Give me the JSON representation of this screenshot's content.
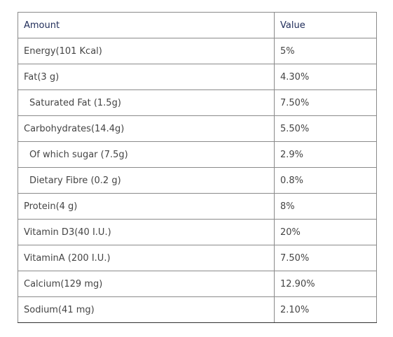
{
  "table": {
    "headers": {
      "amount": "Amount",
      "value": "Value"
    },
    "rows": [
      {
        "amount": "Energy(101 Kcal)",
        "value": "5%",
        "indent": false
      },
      {
        "amount": "Fat(3 g)",
        "value": "4.30%",
        "indent": false
      },
      {
        "amount": "Saturated Fat (1.5g)",
        "value": "7.50%",
        "indent": true
      },
      {
        "amount": "Carbohydrates(14.4g)",
        "value": "5.50%",
        "indent": false
      },
      {
        "amount": "Of which sugar (7.5g)",
        "value": "2.9%",
        "indent": true
      },
      {
        "amount": "Dietary Fibre (0.2 g)",
        "value": "0.8%",
        "indent": true
      },
      {
        "amount": "Protein(4 g)",
        "value": "8%",
        "indent": false
      },
      {
        "amount": "Vitamin D3(40 I.U.)",
        "value": "20%",
        "indent": false
      },
      {
        "amount": "VitaminA (200 I.U.)",
        "value": "7.50%",
        "indent": false
      },
      {
        "amount": "Calcium(129 mg)",
        "value": "12.90%",
        "indent": false
      },
      {
        "amount": "Sodium(41 mg)",
        "value": "2.10%",
        "indent": false
      }
    ]
  },
  "colors": {
    "header_text": "#1e2b58",
    "body_text": "#444444",
    "border": "#8a8a8a"
  }
}
